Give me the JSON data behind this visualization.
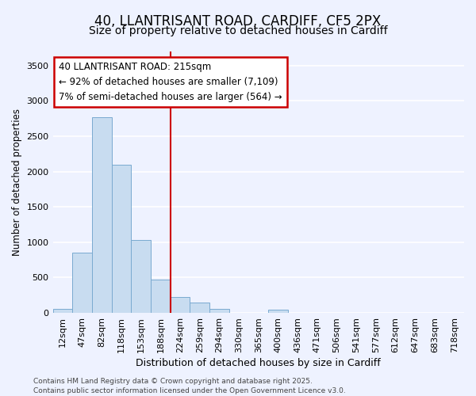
{
  "title_line1": "40, LLANTRISANT ROAD, CARDIFF, CF5 2PX",
  "title_line2": "Size of property relative to detached houses in Cardiff",
  "xlabel": "Distribution of detached houses by size in Cardiff",
  "ylabel": "Number of detached properties",
  "bar_color": "#c8dcf0",
  "bar_edgecolor": "#7aaad0",
  "bar_linewidth": 0.7,
  "vline_color": "#cc0000",
  "vline_linewidth": 1.5,
  "vline_position": 5.5,
  "annotation_text": "40 LLANTRISANT ROAD: 215sqm\n← 92% of detached houses are smaller (7,109)\n7% of semi-detached houses are larger (564) →",
  "annotation_box_color": "white",
  "annotation_box_edgecolor": "#cc0000",
  "annotation_fontsize": 8.5,
  "footer_line1": "Contains HM Land Registry data © Crown copyright and database right 2025.",
  "footer_line2": "Contains public sector information licensed under the Open Government Licence v3.0.",
  "categories": [
    "12sqm",
    "47sqm",
    "82sqm",
    "118sqm",
    "153sqm",
    "188sqm",
    "224sqm",
    "259sqm",
    "294sqm",
    "330sqm",
    "365sqm",
    "400sqm",
    "436sqm",
    "471sqm",
    "506sqm",
    "541sqm",
    "577sqm",
    "612sqm",
    "647sqm",
    "683sqm",
    "718sqm"
  ],
  "values": [
    60,
    850,
    2775,
    2100,
    1030,
    470,
    220,
    150,
    55,
    0,
    0,
    50,
    5,
    5,
    0,
    0,
    0,
    0,
    0,
    0,
    0
  ],
  "ylim": [
    0,
    3700
  ],
  "yticks": [
    0,
    500,
    1000,
    1500,
    2000,
    2500,
    3000,
    3500
  ],
  "background_color": "#eef2ff",
  "grid_color": "white",
  "title_fontsize": 12,
  "subtitle_fontsize": 10,
  "axis_label_fontsize": 9,
  "tick_fontsize": 8,
  "ylabel_fontsize": 8.5
}
